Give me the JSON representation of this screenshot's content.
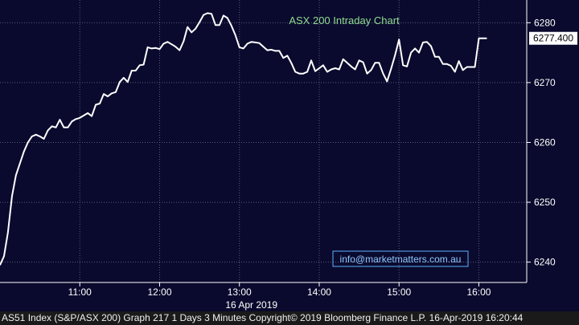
{
  "chart_data": {
    "type": "line",
    "title": "ASX 200 Intraday Chart",
    "x_labels": [
      "11:00",
      "12:00",
      "13:00",
      "14:00",
      "15:00",
      "16:00"
    ],
    "x_date_label": "16 Apr 2019",
    "y_ticks": [
      6240,
      6250,
      6260,
      6270,
      6280
    ],
    "ylim": [
      6236.6,
      6283.8
    ],
    "xlim": [
      "10:00",
      "16:36"
    ],
    "last_value_label": "6277.400",
    "grid": true,
    "watermark": "info@marketmatters.com.au",
    "series": [
      {
        "color": "#ffffff",
        "points": [
          [
            "10:00",
            6239.5
          ],
          [
            "10:03",
            6241
          ],
          [
            "10:06",
            6245
          ],
          [
            "10:09",
            6251
          ],
          [
            "10:12",
            6254.5
          ],
          [
            "10:15",
            6256.5
          ],
          [
            "10:18",
            6258.5
          ],
          [
            "10:21",
            6260
          ],
          [
            "10:24",
            6261
          ],
          [
            "10:27",
            6261.3
          ],
          [
            "10:30",
            6261
          ],
          [
            "10:33",
            6260.6
          ],
          [
            "10:36",
            6262
          ],
          [
            "10:39",
            6262.7
          ],
          [
            "10:42",
            6262.5
          ],
          [
            "10:45",
            6263.8
          ],
          [
            "10:48",
            6262.5
          ],
          [
            "10:51",
            6262.5
          ],
          [
            "10:54",
            6263.5
          ],
          [
            "10:57",
            6263.9
          ],
          [
            "11:00",
            6264.1
          ],
          [
            "11:03",
            6264.5
          ],
          [
            "11:06",
            6264.9
          ],
          [
            "11:09",
            6264.4
          ],
          [
            "11:12",
            6266.3
          ],
          [
            "11:15",
            6266.5
          ],
          [
            "11:18",
            6268.1
          ],
          [
            "11:21",
            6267.7
          ],
          [
            "11:24",
            6268.2
          ],
          [
            "11:27",
            6268.4
          ],
          [
            "11:30",
            6270.1
          ],
          [
            "11:33",
            6270.8
          ],
          [
            "11:36",
            6270.1
          ],
          [
            "11:39",
            6272.0
          ],
          [
            "11:42",
            6272.0
          ],
          [
            "11:45",
            6272.9
          ],
          [
            "11:48",
            6273.0
          ],
          [
            "11:51",
            6275.9
          ],
          [
            "11:54",
            6275.7
          ],
          [
            "11:57",
            6275.8
          ],
          [
            "12:00",
            6275.6
          ],
          [
            "12:03",
            6276.5
          ],
          [
            "12:06",
            6276.8
          ],
          [
            "12:09",
            6276.4
          ],
          [
            "12:12",
            6276.0
          ],
          [
            "12:15",
            6275.4
          ],
          [
            "12:18",
            6276.9
          ],
          [
            "12:21",
            6279.3
          ],
          [
            "12:24",
            6278.4
          ],
          [
            "12:27",
            6279.0
          ],
          [
            "12:30",
            6280.1
          ],
          [
            "12:33",
            6281.3
          ],
          [
            "12:36",
            6281.6
          ],
          [
            "12:39",
            6281.5
          ],
          [
            "12:42",
            6279.6
          ],
          [
            "12:45",
            6279.6
          ],
          [
            "12:48",
            6281.2
          ],
          [
            "12:51",
            6280.8
          ],
          [
            "12:54",
            6279.5
          ],
          [
            "12:57",
            6277.9
          ],
          [
            "13:00",
            6275.9
          ],
          [
            "13:03",
            6275.7
          ],
          [
            "13:06",
            6276.5
          ],
          [
            "13:09",
            6276.8
          ],
          [
            "13:12",
            6276.7
          ],
          [
            "13:15",
            6276.6
          ],
          [
            "13:18",
            6276.0
          ],
          [
            "13:21",
            6275.4
          ],
          [
            "13:24",
            6275.5
          ],
          [
            "13:27",
            6275.3
          ],
          [
            "13:30",
            6275.3
          ],
          [
            "13:33",
            6274.1
          ],
          [
            "13:36",
            6274.5
          ],
          [
            "13:39",
            6273.3
          ],
          [
            "13:42",
            6271.8
          ],
          [
            "13:45",
            6271.5
          ],
          [
            "13:48",
            6271.5
          ],
          [
            "13:51",
            6271.8
          ],
          [
            "13:54",
            6273.7
          ],
          [
            "13:57",
            6271.9
          ],
          [
            "14:00",
            6272.4
          ],
          [
            "14:03",
            6272.9
          ],
          [
            "14:06",
            6271.8
          ],
          [
            "14:09",
            6272.2
          ],
          [
            "14:12",
            6272.4
          ],
          [
            "14:15",
            6272.2
          ],
          [
            "14:18",
            6273.9
          ],
          [
            "14:21",
            6273.3
          ],
          [
            "14:24",
            6272.7
          ],
          [
            "14:27",
            6272.2
          ],
          [
            "14:30",
            6273.7
          ],
          [
            "14:33",
            6273.4
          ],
          [
            "14:36",
            6271.5
          ],
          [
            "14:39",
            6272.1
          ],
          [
            "14:42",
            6273.3
          ],
          [
            "14:45",
            6273.3
          ],
          [
            "14:48",
            6271.5
          ],
          [
            "14:51",
            6270.2
          ],
          [
            "14:54",
            6272.3
          ],
          [
            "14:57",
            6274.6
          ],
          [
            "15:00",
            6277.2
          ],
          [
            "15:03",
            6272.9
          ],
          [
            "15:06",
            6272.7
          ],
          [
            "15:09",
            6275.0
          ],
          [
            "15:12",
            6275.7
          ],
          [
            "15:15",
            6275.0
          ],
          [
            "15:18",
            6276.7
          ],
          [
            "15:21",
            6276.8
          ],
          [
            "15:24",
            6276.1
          ],
          [
            "15:27",
            6274.3
          ],
          [
            "15:30",
            6274.3
          ],
          [
            "15:33",
            6273.1
          ],
          [
            "15:36",
            6273.1
          ],
          [
            "15:39",
            6272.8
          ],
          [
            "15:42",
            6271.8
          ],
          [
            "15:45",
            6273.6
          ],
          [
            "15:48",
            6272.1
          ],
          [
            "15:51",
            6272.6
          ],
          [
            "15:54",
            6272.6
          ],
          [
            "15:57",
            6272.6
          ],
          [
            "16:00",
            6277.4
          ],
          [
            "16:03",
            6277.4
          ],
          [
            "16:06",
            6277.4
          ]
        ]
      }
    ]
  },
  "footer": {
    "text": "AS51 Index (S&P/ASX 200) Graph 217 1 Days 3 Minutes Copyright© 2019 Bloomberg Finance L.P. 16-Apr-2019 16:20:44"
  },
  "colors": {
    "background": "#0a0a2e",
    "grid": "#5a5a78",
    "title": "#8fdc8f",
    "line": "#ffffff",
    "axis_text": "#ffffff",
    "watermark_border": "#5fb0ff",
    "watermark_text": "#8fc8ff"
  }
}
